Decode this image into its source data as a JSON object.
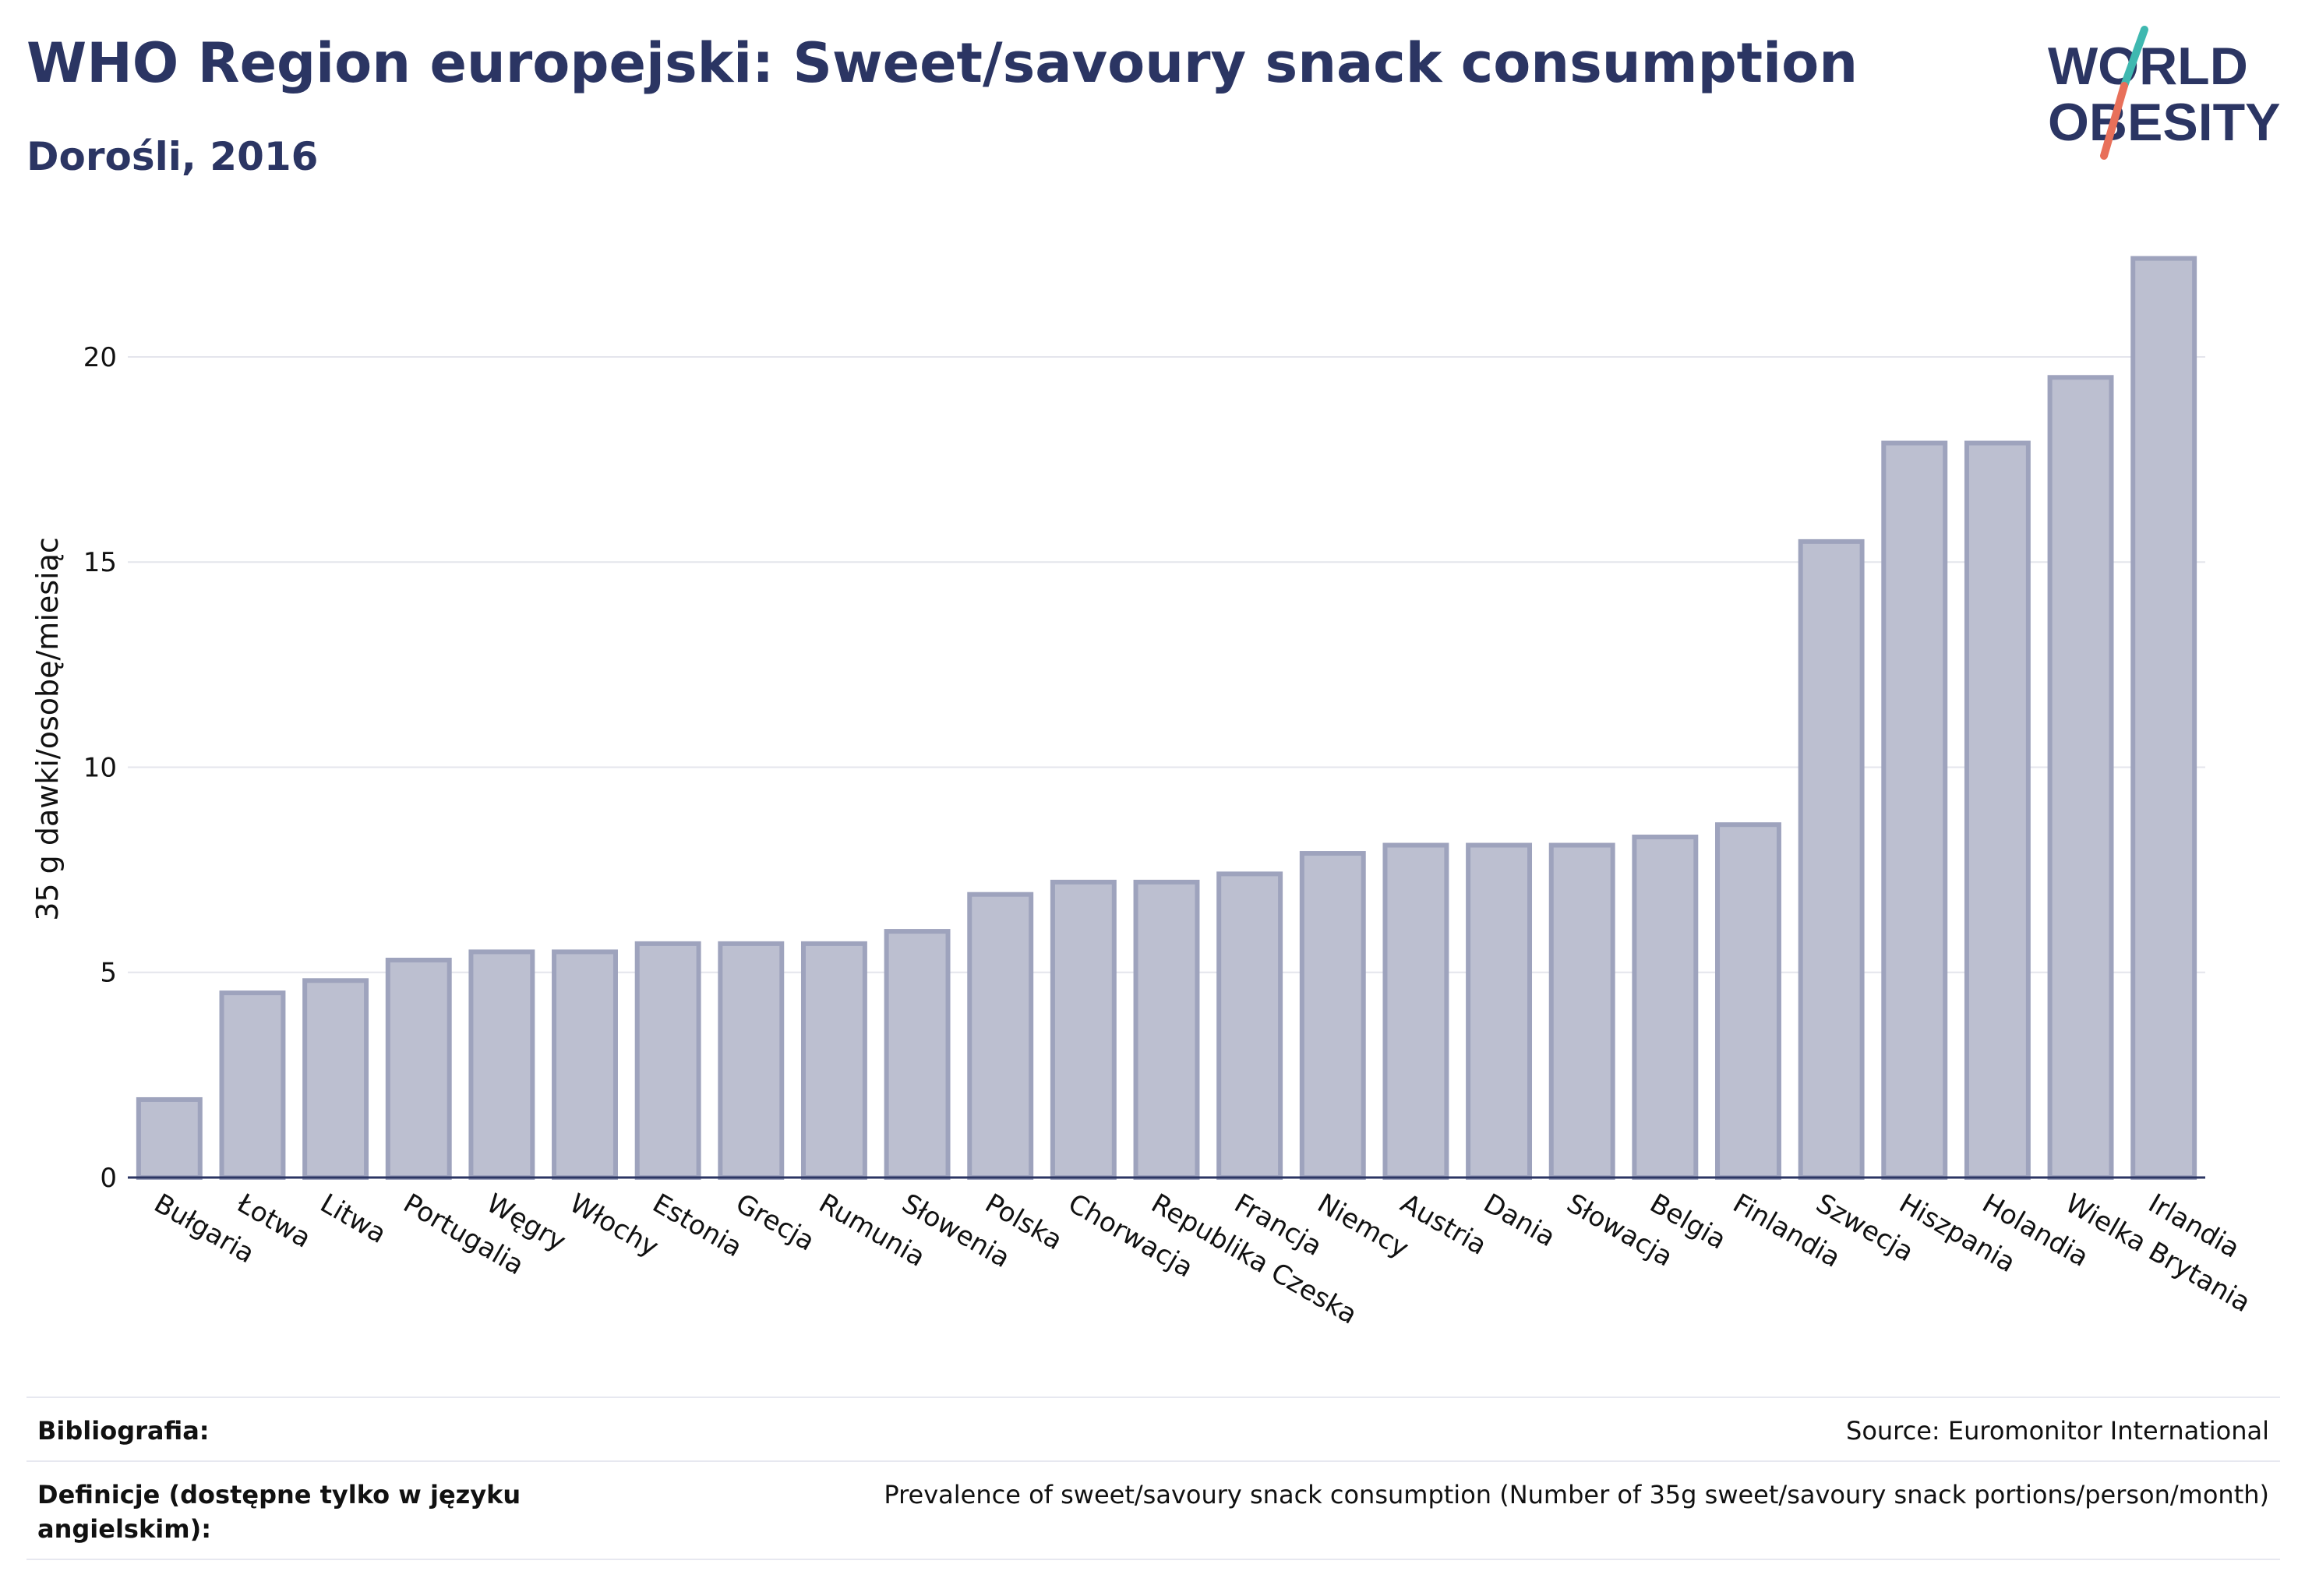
{
  "header": {
    "title": "WHO Region europejski: Sweet/savoury snack consumption",
    "subtitle": "Dorośli, 2016"
  },
  "logo": {
    "line1": "WORLD",
    "line2": "OBESITY",
    "colors": {
      "text": "#2b3563",
      "teal": "#3fb8b0",
      "coral": "#e8705a"
    }
  },
  "chart_data": {
    "type": "bar",
    "categories": [
      "Bułgaria",
      "Łotwa",
      "Litwa",
      "Portugalia",
      "Węgry",
      "Włochy",
      "Estonia",
      "Grecja",
      "Rumunia",
      "Słowenia",
      "Polska",
      "Chorwacja",
      "Republika Czeska",
      "Francja",
      "Niemcy",
      "Austria",
      "Dania",
      "Słowacja",
      "Belgia",
      "Finlandia",
      "Szwecja",
      "Hiszpania",
      "Holandia",
      "Wielka Brytania",
      "Irlandia"
    ],
    "values": [
      1.9,
      4.5,
      4.8,
      5.3,
      5.5,
      5.5,
      5.7,
      5.7,
      5.7,
      6.0,
      6.9,
      7.2,
      7.2,
      7.4,
      7.9,
      8.1,
      8.1,
      8.1,
      8.3,
      8.6,
      15.5,
      17.9,
      17.9,
      19.5,
      22.4
    ],
    "ylabel": "35 g dawki/osobę/miesiąc",
    "yticks": [
      0,
      5,
      10,
      15,
      20
    ],
    "ylim": [
      0,
      23
    ],
    "grid": true,
    "colors": {
      "bar_fill": "#bcbfd0",
      "bar_stroke": "#9ea3bd",
      "axis": "#2b3563",
      "grid": "#e4e5ec"
    }
  },
  "footer": {
    "bibliography_label": "Bibliografia:",
    "bibliography_value": "Source: Euromonitor International",
    "definitions_label": "Definicje (dostępne tylko w języku angielskim):",
    "definitions_value": "Prevalence of sweet/savoury snack consumption (Number of 35g sweet/savoury snack portions/person/month)"
  }
}
